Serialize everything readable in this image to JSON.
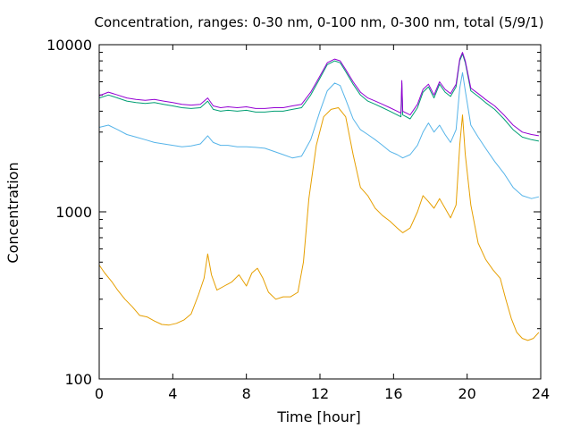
{
  "chart_data": {
    "type": "line",
    "title": "Concentration, ranges: 0-30 nm, 0-100 nm, 0-300 nm, total (5/9/1)",
    "xlabel": "Time [hour]",
    "ylabel": "Concentration",
    "xlim": [
      0,
      24
    ],
    "ylim": [
      100,
      10000
    ],
    "yscale": "log",
    "grid": false,
    "legend": "none",
    "xticks": [
      0,
      4,
      8,
      12,
      16,
      20,
      24
    ],
    "xtick_labels": [
      "0",
      "4",
      "8",
      "12",
      "16",
      "20",
      "24"
    ],
    "yticks": [
      100,
      1000,
      10000
    ],
    "ytick_labels": [
      "100",
      "1000",
      "10000"
    ],
    "series": [
      {
        "color": "#e69f00",
        "points": [
          [
            0,
            480
          ],
          [
            0.3,
            430
          ],
          [
            0.7,
            380
          ],
          [
            1,
            340
          ],
          [
            1.4,
            300
          ],
          [
            1.8,
            270
          ],
          [
            2.2,
            240
          ],
          [
            2.6,
            235
          ],
          [
            3,
            222
          ],
          [
            3.4,
            212
          ],
          [
            3.8,
            210
          ],
          [
            4.2,
            215
          ],
          [
            4.6,
            225
          ],
          [
            5,
            245
          ],
          [
            5.4,
            320
          ],
          [
            5.7,
            400
          ],
          [
            5.9,
            560
          ],
          [
            6.1,
            420
          ],
          [
            6.4,
            340
          ],
          [
            6.8,
            360
          ],
          [
            7.2,
            380
          ],
          [
            7.6,
            420
          ],
          [
            8,
            360
          ],
          [
            8.3,
            430
          ],
          [
            8.6,
            460
          ],
          [
            8.9,
            400
          ],
          [
            9.2,
            330
          ],
          [
            9.6,
            300
          ],
          [
            10,
            310
          ],
          [
            10.4,
            310
          ],
          [
            10.8,
            330
          ],
          [
            11.1,
            500
          ],
          [
            11.4,
            1200
          ],
          [
            11.8,
            2500
          ],
          [
            12.2,
            3700
          ],
          [
            12.6,
            4100
          ],
          [
            13,
            4200
          ],
          [
            13.4,
            3700
          ],
          [
            13.8,
            2200
          ],
          [
            14.2,
            1400
          ],
          [
            14.6,
            1250
          ],
          [
            15,
            1050
          ],
          [
            15.4,
            950
          ],
          [
            15.8,
            880
          ],
          [
            16.2,
            800
          ],
          [
            16.5,
            750
          ],
          [
            16.9,
            800
          ],
          [
            17.3,
            1000
          ],
          [
            17.6,
            1250
          ],
          [
            17.9,
            1150
          ],
          [
            18.2,
            1050
          ],
          [
            18.5,
            1200
          ],
          [
            18.8,
            1050
          ],
          [
            19.1,
            920
          ],
          [
            19.4,
            1100
          ],
          [
            19.6,
            2500
          ],
          [
            19.75,
            3800
          ],
          [
            19.9,
            2200
          ],
          [
            20.2,
            1100
          ],
          [
            20.6,
            650
          ],
          [
            21,
            520
          ],
          [
            21.4,
            450
          ],
          [
            21.8,
            400
          ],
          [
            22.1,
            300
          ],
          [
            22.4,
            230
          ],
          [
            22.7,
            190
          ],
          [
            23,
            175
          ],
          [
            23.3,
            170
          ],
          [
            23.6,
            175
          ],
          [
            23.9,
            190
          ]
        ]
      },
      {
        "color": "#56b4e9",
        "points": [
          [
            0,
            3200
          ],
          [
            0.5,
            3300
          ],
          [
            1,
            3100
          ],
          [
            1.5,
            2900
          ],
          [
            2,
            2800
          ],
          [
            2.5,
            2700
          ],
          [
            3,
            2600
          ],
          [
            3.5,
            2550
          ],
          [
            4,
            2500
          ],
          [
            4.5,
            2450
          ],
          [
            5,
            2480
          ],
          [
            5.5,
            2550
          ],
          [
            5.9,
            2850
          ],
          [
            6.2,
            2600
          ],
          [
            6.6,
            2500
          ],
          [
            7,
            2500
          ],
          [
            7.5,
            2450
          ],
          [
            8,
            2450
          ],
          [
            8.5,
            2430
          ],
          [
            9,
            2400
          ],
          [
            9.5,
            2300
          ],
          [
            10,
            2200
          ],
          [
            10.5,
            2100
          ],
          [
            11,
            2150
          ],
          [
            11.5,
            2700
          ],
          [
            12,
            4000
          ],
          [
            12.4,
            5300
          ],
          [
            12.8,
            5900
          ],
          [
            13.1,
            5700
          ],
          [
            13.4,
            4700
          ],
          [
            13.8,
            3600
          ],
          [
            14.2,
            3100
          ],
          [
            14.6,
            2900
          ],
          [
            15,
            2700
          ],
          [
            15.4,
            2500
          ],
          [
            15.8,
            2300
          ],
          [
            16.2,
            2200
          ],
          [
            16.5,
            2100
          ],
          [
            16.9,
            2200
          ],
          [
            17.3,
            2500
          ],
          [
            17.6,
            3000
          ],
          [
            17.9,
            3400
          ],
          [
            18.2,
            3000
          ],
          [
            18.5,
            3300
          ],
          [
            18.8,
            2900
          ],
          [
            19.1,
            2600
          ],
          [
            19.4,
            3100
          ],
          [
            19.6,
            5500
          ],
          [
            19.75,
            6800
          ],
          [
            19.9,
            5300
          ],
          [
            20.2,
            3300
          ],
          [
            20.6,
            2800
          ],
          [
            21,
            2400
          ],
          [
            21.5,
            2000
          ],
          [
            22,
            1700
          ],
          [
            22.5,
            1400
          ],
          [
            23,
            1250
          ],
          [
            23.5,
            1200
          ],
          [
            23.9,
            1230
          ]
        ]
      },
      {
        "color": "#009e73",
        "points": [
          [
            0,
            4800
          ],
          [
            0.5,
            5000
          ],
          [
            1,
            4800
          ],
          [
            1.5,
            4600
          ],
          [
            2,
            4500
          ],
          [
            2.5,
            4450
          ],
          [
            3,
            4500
          ],
          [
            3.5,
            4400
          ],
          [
            4,
            4300
          ],
          [
            4.5,
            4200
          ],
          [
            5,
            4150
          ],
          [
            5.5,
            4200
          ],
          [
            5.9,
            4600
          ],
          [
            6.2,
            4100
          ],
          [
            6.6,
            4000
          ],
          [
            7,
            4050
          ],
          [
            7.5,
            4000
          ],
          [
            8,
            4050
          ],
          [
            8.5,
            3950
          ],
          [
            9,
            3950
          ],
          [
            9.5,
            4000
          ],
          [
            10,
            4000
          ],
          [
            10.5,
            4100
          ],
          [
            11,
            4200
          ],
          [
            11.5,
            5000
          ],
          [
            12,
            6300
          ],
          [
            12.4,
            7600
          ],
          [
            12.8,
            8000
          ],
          [
            13.1,
            7800
          ],
          [
            13.4,
            6900
          ],
          [
            13.8,
            5800
          ],
          [
            14.2,
            5000
          ],
          [
            14.6,
            4600
          ],
          [
            15,
            4400
          ],
          [
            15.4,
            4200
          ],
          [
            15.8,
            4000
          ],
          [
            16.2,
            3800
          ],
          [
            16.4,
            3700
          ],
          [
            16.45,
            5900
          ],
          [
            16.5,
            3800
          ],
          [
            16.9,
            3600
          ],
          [
            17.3,
            4200
          ],
          [
            17.6,
            5200
          ],
          [
            17.9,
            5600
          ],
          [
            18.2,
            4800
          ],
          [
            18.5,
            5800
          ],
          [
            18.8,
            5200
          ],
          [
            19.1,
            4900
          ],
          [
            19.4,
            5600
          ],
          [
            19.6,
            8000
          ],
          [
            19.75,
            8800
          ],
          [
            19.9,
            7800
          ],
          [
            20.2,
            5300
          ],
          [
            20.6,
            4900
          ],
          [
            21,
            4500
          ],
          [
            21.5,
            4100
          ],
          [
            22,
            3600
          ],
          [
            22.5,
            3100
          ],
          [
            23,
            2800
          ],
          [
            23.5,
            2700
          ],
          [
            23.9,
            2650
          ]
        ]
      },
      {
        "color": "#9400d3",
        "points": [
          [
            0,
            4950
          ],
          [
            0.5,
            5200
          ],
          [
            1,
            5000
          ],
          [
            1.5,
            4800
          ],
          [
            2,
            4700
          ],
          [
            2.5,
            4650
          ],
          [
            3,
            4700
          ],
          [
            3.5,
            4600
          ],
          [
            4,
            4500
          ],
          [
            4.5,
            4400
          ],
          [
            5,
            4350
          ],
          [
            5.5,
            4400
          ],
          [
            5.9,
            4800
          ],
          [
            6.2,
            4300
          ],
          [
            6.6,
            4200
          ],
          [
            7,
            4250
          ],
          [
            7.5,
            4200
          ],
          [
            8,
            4250
          ],
          [
            8.5,
            4150
          ],
          [
            9,
            4150
          ],
          [
            9.5,
            4200
          ],
          [
            10,
            4200
          ],
          [
            10.5,
            4300
          ],
          [
            11,
            4400
          ],
          [
            11.5,
            5200
          ],
          [
            12,
            6500
          ],
          [
            12.4,
            7800
          ],
          [
            12.8,
            8200
          ],
          [
            13.1,
            8000
          ],
          [
            13.4,
            7100
          ],
          [
            13.8,
            6000
          ],
          [
            14.2,
            5200
          ],
          [
            14.6,
            4800
          ],
          [
            15,
            4600
          ],
          [
            15.4,
            4400
          ],
          [
            15.8,
            4200
          ],
          [
            16.2,
            4000
          ],
          [
            16.4,
            3900
          ],
          [
            16.45,
            6100
          ],
          [
            16.5,
            4000
          ],
          [
            16.9,
            3800
          ],
          [
            17.3,
            4400
          ],
          [
            17.6,
            5400
          ],
          [
            17.9,
            5800
          ],
          [
            18.2,
            5000
          ],
          [
            18.5,
            6000
          ],
          [
            18.8,
            5400
          ],
          [
            19.1,
            5100
          ],
          [
            19.4,
            5800
          ],
          [
            19.6,
            8200
          ],
          [
            19.75,
            9000
          ],
          [
            19.9,
            8000
          ],
          [
            20.2,
            5500
          ],
          [
            20.6,
            5100
          ],
          [
            21,
            4700
          ],
          [
            21.5,
            4300
          ],
          [
            22,
            3800
          ],
          [
            22.5,
            3300
          ],
          [
            23,
            3000
          ],
          [
            23.5,
            2900
          ],
          [
            23.9,
            2850
          ]
        ]
      }
    ]
  }
}
